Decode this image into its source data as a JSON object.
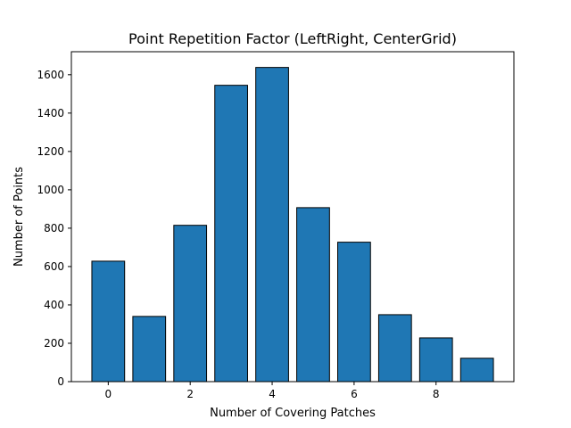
{
  "chart_data": {
    "type": "bar",
    "title": "Point Repetition Factor (LeftRight, CenterGrid)",
    "xlabel": "Number of Covering Patches",
    "ylabel": "Number of Points",
    "x": [
      0,
      1,
      2,
      3,
      4,
      5,
      6,
      7,
      8,
      9
    ],
    "values": [
      628,
      340,
      815,
      1545,
      1638,
      907,
      727,
      349,
      228,
      122
    ],
    "xlim": [
      -0.9,
      9.9
    ],
    "ylim": [
      0,
      1720
    ],
    "xticks": [
      0,
      2,
      4,
      6,
      8
    ],
    "yticks": [
      0,
      200,
      400,
      600,
      800,
      1000,
      1200,
      1400,
      1600
    ],
    "grid": false,
    "bar_color": "#1f77b4",
    "edge_color": "#000000"
  }
}
